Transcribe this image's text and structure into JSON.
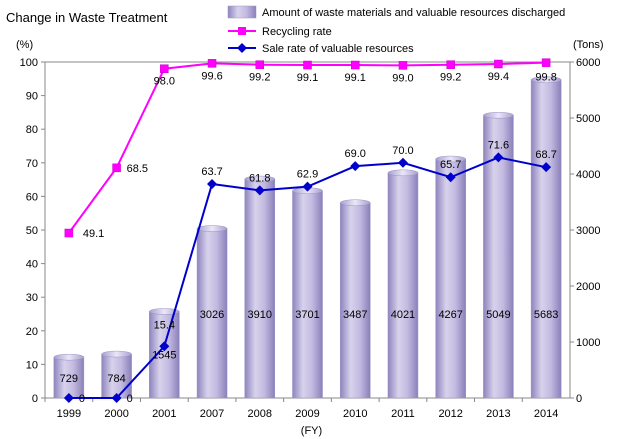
{
  "chart_data": {
    "type": "bar",
    "title": "Change in Waste Treatment",
    "categories": [
      "1999",
      "2000",
      "2001",
      "2007",
      "2008",
      "2009",
      "2010",
      "2011",
      "2012",
      "2013",
      "2014"
    ],
    "x_unit": "(FY)",
    "y_left": {
      "unit": "(%)",
      "range": [
        0,
        100
      ],
      "ticks": [
        0,
        10,
        20,
        30,
        40,
        50,
        60,
        70,
        80,
        90,
        100
      ]
    },
    "y_right": {
      "unit": "(Tons)",
      "range": [
        0,
        6000
      ],
      "ticks": [
        0,
        1000,
        2000,
        3000,
        4000,
        5000,
        6000
      ]
    },
    "grid": false,
    "legend_position": "top-right",
    "series": [
      {
        "name": "Amount of waste materials and valuable resources discharged",
        "type": "bar",
        "axis": "right",
        "color": "#b9b0d8",
        "values": [
          729,
          784,
          1545,
          3026,
          3910,
          3701,
          3487,
          4021,
          4267,
          5049,
          5683
        ]
      },
      {
        "name": "Recycling rate",
        "type": "line",
        "axis": "left",
        "color": "#ff00ff",
        "marker": "square",
        "values": [
          49.1,
          68.5,
          98.0,
          99.6,
          99.2,
          99.1,
          99.1,
          99.0,
          99.2,
          99.4,
          99.8
        ]
      },
      {
        "name": "Sale rate of valuable resources",
        "type": "line",
        "axis": "left",
        "color": "#0000cc",
        "marker": "diamond",
        "values": [
          0,
          0,
          15.4,
          63.7,
          61.8,
          62.9,
          69.0,
          70.0,
          65.7,
          71.6,
          68.7
        ]
      }
    ]
  }
}
